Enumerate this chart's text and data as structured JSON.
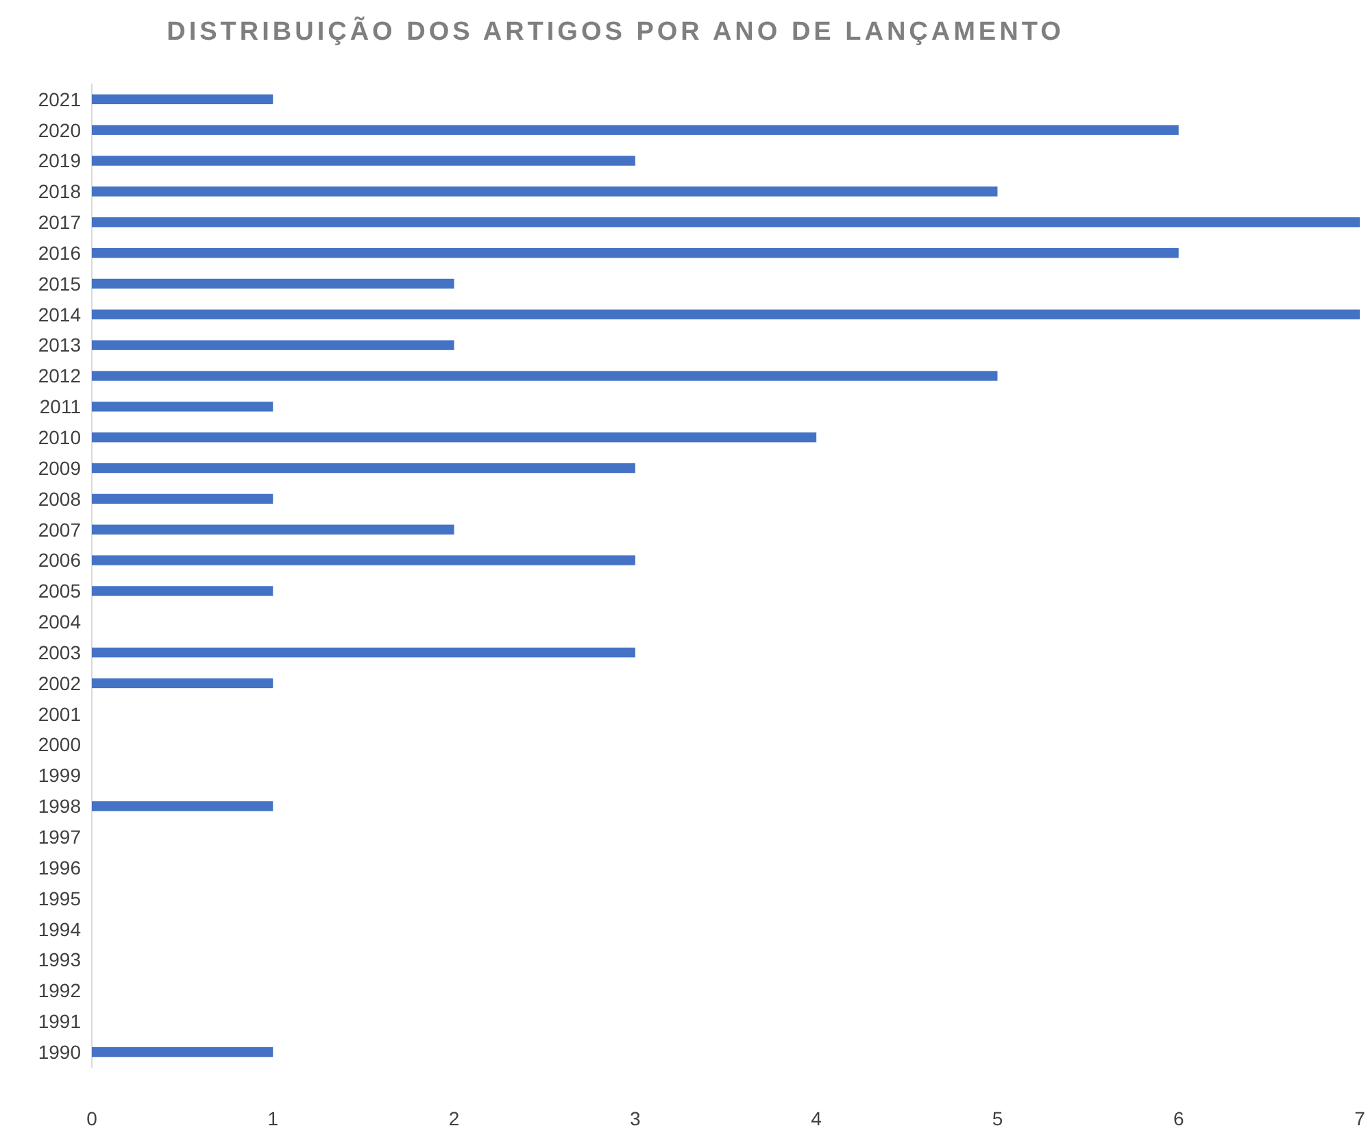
{
  "chart_data": {
    "type": "bar",
    "orientation": "horizontal",
    "title": "DISTRIBUIÇÃO DOS ARTIGOS POR ANO DE LANÇAMENTO",
    "categories": [
      "2021",
      "2020",
      "2019",
      "2018",
      "2017",
      "2016",
      "2015",
      "2014",
      "2013",
      "2012",
      "2011",
      "2010",
      "2009",
      "2008",
      "2007",
      "2006",
      "2005",
      "2004",
      "2003",
      "2002",
      "2001",
      "2000",
      "1999",
      "1998",
      "1997",
      "1996",
      "1995",
      "1994",
      "1993",
      "1992",
      "1991",
      "1990"
    ],
    "values": [
      1,
      6,
      3,
      5,
      7,
      6,
      2,
      7,
      2,
      5,
      1,
      4,
      3,
      1,
      2,
      3,
      1,
      0,
      3,
      1,
      0,
      0,
      0,
      1,
      0,
      0,
      0,
      0,
      0,
      0,
      0,
      1
    ],
    "color": "#4472c4",
    "xlim": [
      0,
      7
    ],
    "xticks": [
      0,
      1,
      2,
      3,
      4,
      5,
      6,
      7
    ],
    "grid": false
  }
}
